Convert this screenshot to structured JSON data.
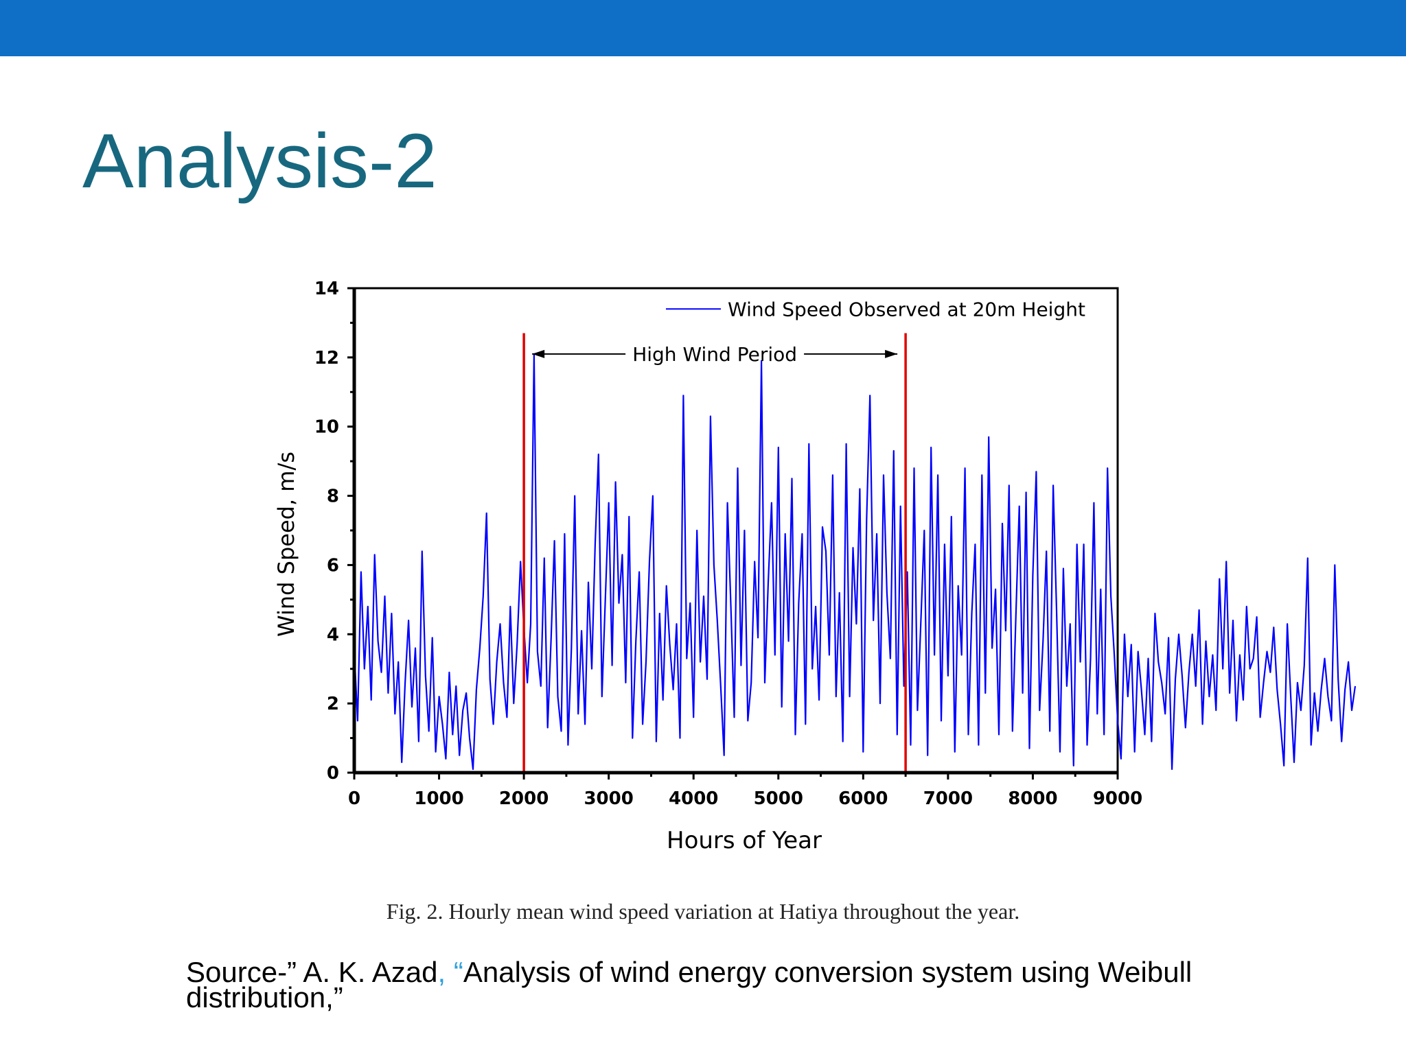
{
  "slide": {
    "title": "Analysis-2",
    "caption": "Fig. 2. Hourly mean wind speed variation at Hatiya throughout the year.",
    "source_prefix": "Source-” A. K. Azad",
    "source_comma": ",",
    "source_quote": " “",
    "source_rest": "Analysis of wind energy conversion system using Weibull distribution,”"
  },
  "colors": {
    "top_bar": "#0F6FC6",
    "title": "#17687F",
    "series": "#0000FF",
    "marker": "#E00000",
    "accent": "#2E9FDB"
  },
  "chart_data": {
    "type": "line",
    "xlabel": "Hours of Year",
    "ylabel": "Wind Speed, m/s",
    "xlim": [
      0,
      9000
    ],
    "ylim": [
      0,
      14
    ],
    "xticks": [
      0,
      1000,
      2000,
      3000,
      4000,
      5000,
      6000,
      7000,
      8000,
      9000
    ],
    "yticks": [
      0,
      2,
      4,
      6,
      8,
      10,
      12,
      14
    ],
    "grid": false,
    "legend_position": "top-right",
    "series": [
      {
        "name": "Wind Speed Observed at 20m Height",
        "x_step": 40,
        "values": [
          3.5,
          1.5,
          5.8,
          3.0,
          4.8,
          2.1,
          6.3,
          3.8,
          2.9,
          5.1,
          2.3,
          4.6,
          1.7,
          3.2,
          0.3,
          2.6,
          4.4,
          1.9,
          3.6,
          0.9,
          6.4,
          2.8,
          1.2,
          3.9,
          0.6,
          2.2,
          1.4,
          0.4,
          2.9,
          1.1,
          2.5,
          0.5,
          1.8,
          2.3,
          1.0,
          0.1,
          2.4,
          3.6,
          5.1,
          7.5,
          2.7,
          1.4,
          3.2,
          4.3,
          2.6,
          1.6,
          4.8,
          2.0,
          3.7,
          6.1,
          4.2,
          2.6,
          4.3,
          12.1,
          3.5,
          2.5,
          6.2,
          1.3,
          3.8,
          6.7,
          2.2,
          1.2,
          6.9,
          0.8,
          3.6,
          8.0,
          1.7,
          4.1,
          1.4,
          5.5,
          3.0,
          6.6,
          9.2,
          2.2,
          5.0,
          7.8,
          3.1,
          8.4,
          4.9,
          6.3,
          2.6,
          7.4,
          1.0,
          3.8,
          5.8,
          1.4,
          3.2,
          6.1,
          8.0,
          0.9,
          4.6,
          2.1,
          5.4,
          3.7,
          2.4,
          4.3,
          1.0,
          10.9,
          3.3,
          4.9,
          1.6,
          7.0,
          3.2,
          5.1,
          2.7,
          10.3,
          6.0,
          4.4,
          2.5,
          0.5,
          7.8,
          4.8,
          1.6,
          8.8,
          3.1,
          7.0,
          1.5,
          2.6,
          6.1,
          3.9,
          11.9,
          2.6,
          5.5,
          7.8,
          3.4,
          9.4,
          1.9,
          6.9,
          3.8,
          8.5,
          1.1,
          4.9,
          6.9,
          1.4,
          9.5,
          3.0,
          4.8,
          2.1,
          7.1,
          6.4,
          3.4,
          8.6,
          2.2,
          5.2,
          0.9,
          9.5,
          2.2,
          6.5,
          4.3,
          8.2,
          0.6,
          7.3,
          10.9,
          4.4,
          6.9,
          2.0,
          8.6,
          5.2,
          3.3,
          9.3,
          1.1,
          7.7,
          2.5,
          5.8,
          0.8,
          8.8,
          1.8,
          4.4,
          7.0,
          0.5,
          9.4,
          3.4,
          8.6,
          1.5,
          6.6,
          2.8,
          7.4,
          0.6,
          5.4,
          3.4,
          8.8,
          1.1,
          4.6,
          6.6,
          0.8,
          8.6,
          2.3,
          9.7,
          3.6,
          5.3,
          1.1,
          7.2,
          4.1,
          8.3,
          1.2,
          4.5,
          7.7,
          2.3,
          8.1,
          0.7,
          5.7,
          8.7,
          1.8,
          3.8,
          6.4,
          1.2,
          8.3,
          4.7,
          0.6,
          5.9,
          2.5,
          4.3,
          0.2,
          6.6,
          3.2,
          6.6,
          0.8,
          3.3,
          7.8,
          1.7,
          5.3,
          1.1,
          8.8,
          5.1,
          3.4,
          1.5,
          0.4,
          4.0,
          2.2,
          3.7,
          0.6,
          3.5,
          2.4,
          1.1,
          3.3,
          0.9,
          4.6,
          3.2,
          2.6,
          1.7,
          3.9,
          0.1,
          2.7,
          4.0,
          2.8,
          1.3,
          2.9,
          4.0,
          2.5,
          4.7,
          1.4,
          3.8,
          2.2,
          3.4,
          1.8,
          5.6,
          3.0,
          6.1,
          2.3,
          4.4,
          1.5,
          3.4,
          2.1,
          4.8,
          3.0,
          3.3,
          4.5,
          1.6,
          2.6,
          3.5,
          2.9,
          4.2,
          2.4,
          1.4,
          0.2,
          4.3,
          2.2,
          0.3,
          2.6,
          1.8,
          3.1,
          6.2,
          0.8,
          2.3,
          1.2,
          2.4,
          3.3,
          2.2,
          1.5,
          6.0,
          2.7,
          0.9,
          2.4,
          3.2,
          1.8,
          2.5
        ]
      }
    ],
    "annotations": {
      "high_wind_period_label": "High Wind Period",
      "high_wind_period_start": 2000,
      "high_wind_period_end": 6500
    }
  }
}
